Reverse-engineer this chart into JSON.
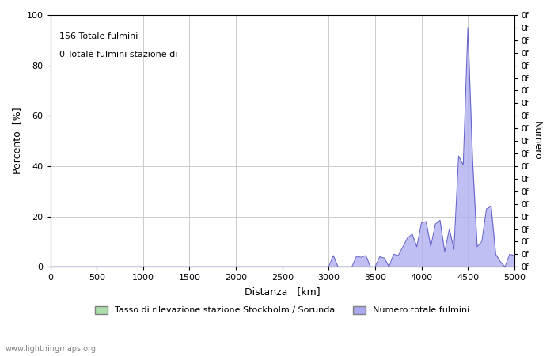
{
  "xlabel": "Distanza   [km]",
  "ylabel_left": "Percento  [%]",
  "ylabel_right": "Numero",
  "annotation_line1": "156 Totale fulmini",
  "annotation_line2": "0 Totale fulmini stazione di",
  "legend_label1": "Tasso di rilevazione stazione Stockholm / Sorunda",
  "legend_label2": "Numero totale fulmini",
  "legend_color1": "#aaddaa",
  "legend_color2": "#aaaaee",
  "watermark": "www.lightningmaps.org",
  "xlim": [
    0,
    5000
  ],
  "ylim": [
    0,
    100
  ],
  "xticks": [
    0,
    500,
    1000,
    1500,
    2000,
    2500,
    3000,
    3500,
    4000,
    4500,
    5000
  ],
  "yticks_left": [
    0,
    20,
    40,
    60,
    80,
    100
  ],
  "right_ytick_labels": [
    "0f",
    "0f",
    "0f",
    "0f",
    "0f",
    "0f",
    "0f",
    "0f",
    "0f",
    "0f",
    "0f",
    "0f",
    "0f",
    "0f",
    "0f",
    "0f",
    "0f",
    "0f",
    "0f",
    "0f",
    "0f"
  ],
  "fill_color": "#b0b0f0",
  "line_color": "#6666cc",
  "background_color": "#ffffff",
  "grid_color": "#cccccc",
  "dist_data": [
    0,
    50,
    100,
    150,
    200,
    250,
    300,
    350,
    400,
    450,
    500,
    550,
    600,
    650,
    700,
    750,
    800,
    850,
    900,
    950,
    1000,
    1050,
    1100,
    1150,
    1200,
    1250,
    1300,
    1350,
    1400,
    1450,
    1500,
    1550,
    1600,
    1650,
    1700,
    1750,
    1800,
    1850,
    1900,
    1950,
    2000,
    2050,
    2100,
    2150,
    2200,
    2250,
    2300,
    2350,
    2400,
    2450,
    2500,
    2550,
    2600,
    2650,
    2700,
    2750,
    2800,
    2850,
    2900,
    2950,
    3000,
    3050,
    3100,
    3150,
    3200,
    3250,
    3300,
    3350,
    3400,
    3450,
    3500,
    3550,
    3600,
    3650,
    3700,
    3750,
    3800,
    3850,
    3900,
    3950,
    4000,
    4050,
    4100,
    4150,
    4200,
    4250,
    4300,
    4350,
    4400,
    4450,
    4500,
    4550,
    4600,
    4650,
    4700,
    4750,
    4800,
    4850,
    4900,
    4950,
    5000
  ],
  "pct_data": [
    0,
    0,
    0,
    0,
    0,
    0,
    0,
    0,
    0,
    0,
    0,
    0,
    0,
    0,
    0,
    0,
    0,
    0,
    0,
    0,
    0,
    0,
    0,
    0,
    0,
    0,
    0,
    0,
    0,
    0,
    0,
    0,
    0,
    0,
    0,
    0,
    0,
    0,
    0,
    0,
    0,
    0,
    0,
    0,
    0,
    0,
    0,
    0,
    0,
    0,
    0,
    0,
    0,
    0,
    0,
    0,
    0,
    0,
    0,
    0,
    0,
    4.5,
    0,
    0,
    0,
    0,
    4.2,
    3.8,
    4.5,
    0,
    0,
    4.0,
    3.5,
    0,
    5.0,
    4.5,
    8.0,
    11.5,
    13.0,
    8.0,
    17.5,
    18.0,
    8.0,
    17.0,
    18.5,
    6.0,
    15.0,
    7.0,
    44.0,
    40.5,
    95.0,
    43.0,
    8.0,
    10.0,
    23.0,
    24.0,
    5.0,
    2.0,
    0,
    5.0,
    4.5
  ]
}
